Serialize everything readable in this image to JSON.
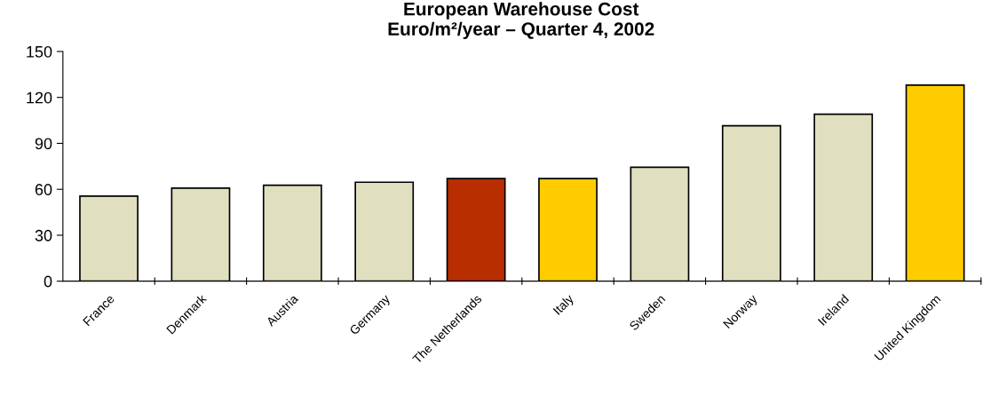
{
  "chart_data": {
    "type": "bar",
    "title": "European Warehouse Cost\nEuro/m²/year – Quarter 4, 2002",
    "categories": [
      "France",
      "Denmark",
      "Austria",
      "Germany",
      "The Netherlands",
      "Italy",
      "Sweden",
      "Norway",
      "Ireland",
      "United Kingdom"
    ],
    "values": [
      55.5,
      60.8,
      62.6,
      64.6,
      67,
      67,
      74.4,
      101.5,
      109,
      128
    ],
    "colors": [
      "#e0e0c0",
      "#e0e0c0",
      "#e0e0c0",
      "#e0e0c0",
      "#b82e00",
      "#ffcc00",
      "#e0e0c0",
      "#e0e0c0",
      "#e0e0c0",
      "#ffcc00"
    ],
    "ylim": [
      0,
      150
    ],
    "yticks": [
      0,
      30,
      60,
      90,
      120,
      150
    ],
    "grid": false,
    "legend": false
  }
}
